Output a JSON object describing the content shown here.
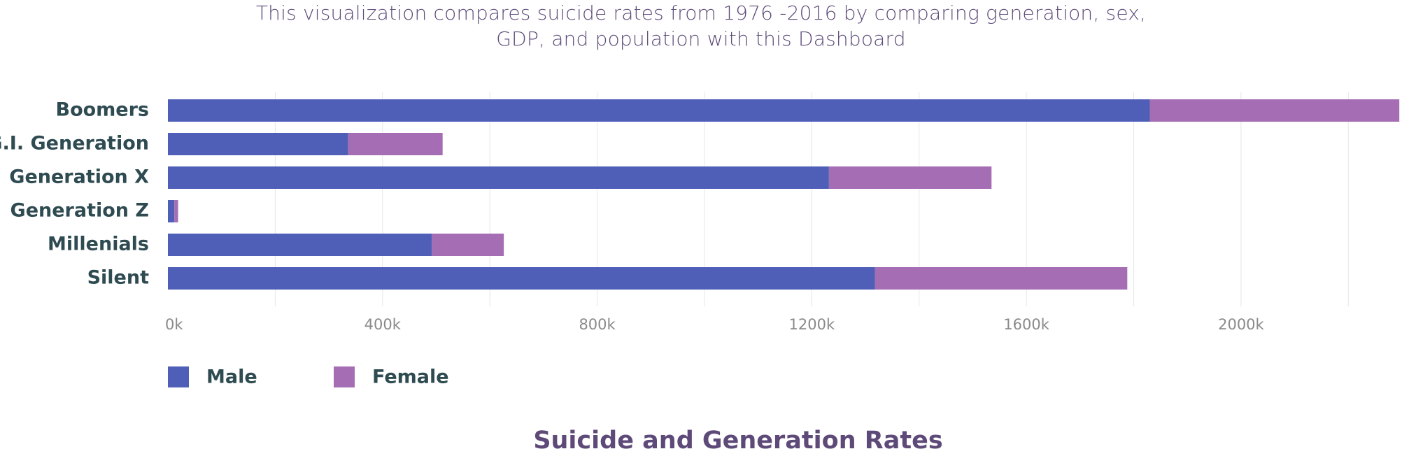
{
  "subtitle_line1": "This visualization compares suicide rates  from 1976 -2016 by comparing generation, sex,",
  "subtitle_line2": "GDP, and population with this Dashboard",
  "colors": {
    "male": "#4f5fb8",
    "female": "#a56db4",
    "grid": "#e6e6e6"
  },
  "chart_data": {
    "type": "bar",
    "orientation": "horizontal",
    "stacked": true,
    "title": "Suicide and Generation Rates",
    "categories": [
      "Boomers",
      "G.I. Generation",
      "Generation X",
      "Generation Z",
      "Millenials",
      "Silent"
    ],
    "series": [
      {
        "name": "Male",
        "values": [
          1830000,
          336000,
          1232000,
          12000,
          492000,
          1318000
        ]
      },
      {
        "name": "Female",
        "values": [
          465000,
          176000,
          303000,
          7000,
          134000,
          470000
        ]
      }
    ],
    "xlim": [
      0,
      2300000
    ],
    "xticks": [
      0,
      400000,
      800000,
      1200000,
      1600000,
      2000000
    ],
    "xtick_labels": [
      "0k",
      "400k",
      "800k",
      "1200k",
      "1600k",
      "2000k"
    ],
    "grid": true,
    "legend_position": "bottom-left"
  }
}
